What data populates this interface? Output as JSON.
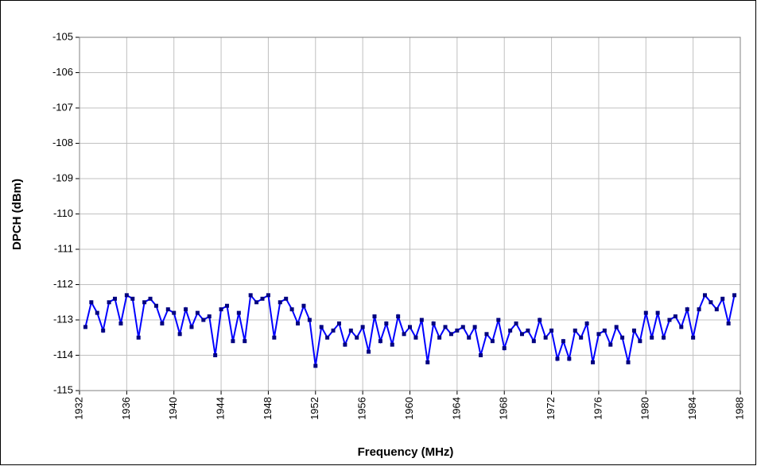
{
  "chart_data": {
    "type": "line",
    "xlabel": "Frequency (MHz)",
    "ylabel": "DPCH (dBm)",
    "xlim": [
      1932,
      1988
    ],
    "xticks": [
      1932,
      1936,
      1940,
      1944,
      1948,
      1952,
      1956,
      1960,
      1964,
      1968,
      1972,
      1976,
      1980,
      1984,
      1988
    ],
    "ylim": [
      -115,
      -105
    ],
    "yticks": [
      -105,
      -106,
      -107,
      -108,
      -109,
      -110,
      -111,
      -112,
      -113,
      -114,
      -115
    ],
    "grid": true,
    "x": [
      1932.5,
      1933,
      1933.5,
      1934,
      1934.5,
      1935,
      1935.5,
      1936,
      1936.5,
      1937,
      1937.5,
      1938,
      1938.5,
      1939,
      1939.5,
      1940,
      1940.5,
      1941,
      1941.5,
      1942,
      1942.5,
      1943,
      1943.5,
      1944,
      1944.5,
      1945,
      1945.5,
      1946,
      1946.5,
      1947,
      1947.5,
      1948,
      1948.5,
      1949,
      1949.5,
      1950,
      1950.5,
      1951,
      1951.5,
      1952,
      1952.5,
      1953,
      1953.5,
      1954,
      1954.5,
      1955,
      1955.5,
      1956,
      1956.5,
      1957,
      1957.5,
      1958,
      1958.5,
      1959,
      1959.5,
      1960,
      1960.5,
      1961,
      1961.5,
      1962,
      1962.5,
      1963,
      1963.5,
      1964,
      1964.5,
      1965,
      1965.5,
      1966,
      1966.5,
      1967,
      1967.5,
      1968,
      1968.5,
      1969,
      1969.5,
      1970,
      1970.5,
      1971,
      1971.5,
      1972,
      1972.5,
      1973,
      1973.5,
      1974,
      1974.5,
      1975,
      1975.5,
      1976,
      1976.5,
      1977,
      1977.5,
      1978,
      1978.5,
      1979,
      1979.5,
      1980,
      1980.5,
      1981,
      1981.5,
      1982,
      1982.5,
      1983,
      1983.5,
      1984,
      1984.5,
      1985,
      1985.5,
      1986,
      1986.5,
      1987,
      1987.5
    ],
    "series": [
      {
        "color": "#0000ff",
        "marker_color": "#000080",
        "values": [
          -113.2,
          -112.5,
          -112.8,
          -113.3,
          -112.5,
          -112.4,
          -113.1,
          -112.3,
          -112.4,
          -113.5,
          -112.5,
          -112.4,
          -112.6,
          -113.1,
          -112.7,
          -112.8,
          -113.4,
          -112.7,
          -113.2,
          -112.8,
          -113.0,
          -112.9,
          -114.0,
          -112.7,
          -112.6,
          -113.6,
          -112.8,
          -113.6,
          -112.3,
          -112.5,
          -112.4,
          -112.3,
          -113.5,
          -112.5,
          -112.4,
          -112.7,
          -113.1,
          -112.6,
          -113.0,
          -114.3,
          -113.2,
          -113.5,
          -113.3,
          -113.1,
          -113.7,
          -113.3,
          -113.5,
          -113.2,
          -113.9,
          -112.9,
          -113.6,
          -113.1,
          -113.7,
          -112.9,
          -113.4,
          -113.2,
          -113.5,
          -113.0,
          -114.2,
          -113.1,
          -113.5,
          -113.2,
          -113.4,
          -113.3,
          -113.2,
          -113.5,
          -113.2,
          -114.0,
          -113.4,
          -113.6,
          -113.0,
          -113.8,
          -113.3,
          -113.1,
          -113.4,
          -113.3,
          -113.6,
          -113.0,
          -113.5,
          -113.3,
          -114.1,
          -113.6,
          -114.1,
          -113.3,
          -113.5,
          -113.1,
          -114.2,
          -113.4,
          -113.3,
          -113.7,
          -113.2,
          -113.5,
          -114.2,
          -113.3,
          -113.6,
          -112.8,
          -113.5,
          -112.8,
          -113.5,
          -113.0,
          -112.9,
          -113.2,
          -112.7,
          -113.5,
          -112.7,
          -112.3,
          -112.5,
          -112.7,
          -112.4,
          -113.1,
          -112.3
        ]
      }
    ]
  }
}
